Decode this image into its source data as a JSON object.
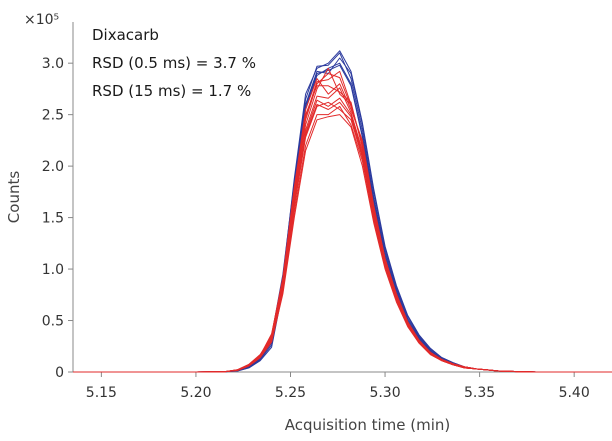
{
  "chart_data": {
    "type": "line",
    "xlabel": "Acquisition time (min)",
    "ylabel": "Counts",
    "y_multiplier_label": "×10⁵",
    "xlim": [
      5.135,
      5.42
    ],
    "ylim": [
      0,
      3.4
    ],
    "x_ticks": [
      5.15,
      5.2,
      5.25,
      5.3,
      5.35,
      5.4
    ],
    "x_tick_labels": [
      "5.15",
      "5.20",
      "5.25",
      "5.30",
      "5.35",
      "5.40"
    ],
    "y_ticks": [
      0,
      0.5,
      1.0,
      1.5,
      2.0,
      2.5,
      3.0
    ],
    "y_tick_labels": [
      "0",
      "0.5",
      "1.0",
      "1.5",
      "2.0",
      "2.5",
      "3.0"
    ],
    "grid": false,
    "legend": "none",
    "annotation": {
      "compound": "Dixacarb",
      "rsd_fast": "RSD (0.5 ms) = 3.7 %",
      "rsd_slow": "RSD (15 ms) = 1.7 %"
    },
    "x": [
      5.135,
      5.2,
      5.215,
      5.222,
      5.228,
      5.234,
      5.24,
      5.246,
      5.252,
      5.258,
      5.264,
      5.27,
      5.276,
      5.282,
      5.288,
      5.294,
      5.3,
      5.306,
      5.312,
      5.318,
      5.324,
      5.33,
      5.336,
      5.342,
      5.348,
      5.354,
      5.36,
      5.37,
      5.38,
      5.42
    ],
    "series": [
      {
        "color": "#2b3a9e",
        "values": [
          0,
          0,
          0.003,
          0.015,
          0.05,
          0.14,
          0.35,
          0.95,
          1.85,
          2.65,
          2.97,
          2.98,
          3.1,
          2.85,
          2.35,
          1.7,
          1.17,
          0.8,
          0.52,
          0.34,
          0.21,
          0.13,
          0.08,
          0.05,
          0.03,
          0.02,
          0.01,
          0.004,
          0,
          0
        ]
      },
      {
        "color": "#2b3a9e",
        "values": [
          0,
          0,
          0.002,
          0.012,
          0.045,
          0.12,
          0.3,
          0.88,
          1.8,
          2.6,
          2.92,
          2.9,
          3.05,
          2.9,
          2.4,
          1.75,
          1.2,
          0.82,
          0.54,
          0.35,
          0.22,
          0.14,
          0.09,
          0.05,
          0.03,
          0.02,
          0.01,
          0.004,
          0,
          0
        ]
      },
      {
        "color": "#2b3a9e",
        "values": [
          0,
          0,
          0.002,
          0.01,
          0.04,
          0.11,
          0.24,
          0.8,
          1.72,
          2.55,
          2.88,
          2.95,
          3.0,
          2.8,
          2.3,
          1.68,
          1.14,
          0.78,
          0.5,
          0.33,
          0.2,
          0.13,
          0.08,
          0.05,
          0.03,
          0.02,
          0.01,
          0.004,
          0,
          0
        ]
      },
      {
        "color": "#2b3a9e",
        "values": [
          0,
          0,
          0.003,
          0.014,
          0.05,
          0.13,
          0.28,
          0.92,
          1.88,
          2.7,
          2.95,
          3.0,
          3.12,
          2.92,
          2.42,
          1.78,
          1.22,
          0.84,
          0.55,
          0.36,
          0.23,
          0.14,
          0.09,
          0.05,
          0.03,
          0.02,
          0.01,
          0.004,
          0,
          0
        ]
      },
      {
        "color": "#2b3a9e",
        "values": [
          0,
          0,
          0.002,
          0.011,
          0.042,
          0.12,
          0.26,
          0.85,
          1.78,
          2.58,
          2.9,
          2.93,
          2.98,
          2.78,
          2.28,
          1.65,
          1.12,
          0.77,
          0.5,
          0.32,
          0.2,
          0.12,
          0.08,
          0.05,
          0.03,
          0.02,
          0.01,
          0.004,
          0,
          0
        ]
      },
      {
        "color": "#e22a2a",
        "values": [
          0,
          0,
          0.003,
          0.02,
          0.07,
          0.16,
          0.37,
          0.9,
          1.7,
          2.4,
          2.75,
          2.95,
          2.7,
          2.6,
          2.2,
          1.6,
          1.1,
          0.75,
          0.48,
          0.3,
          0.19,
          0.12,
          0.08,
          0.05,
          0.03,
          0.02,
          0.01,
          0.004,
          0,
          0
        ]
      },
      {
        "color": "#e22a2a",
        "values": [
          0,
          0,
          0.002,
          0.018,
          0.065,
          0.15,
          0.32,
          0.82,
          1.62,
          2.3,
          2.6,
          2.55,
          2.62,
          2.48,
          2.1,
          1.52,
          1.05,
          0.72,
          0.46,
          0.29,
          0.18,
          0.11,
          0.07,
          0.04,
          0.03,
          0.02,
          0.01,
          0.004,
          0,
          0
        ]
      },
      {
        "color": "#e22a2a",
        "values": [
          0,
          0,
          0.003,
          0.022,
          0.075,
          0.17,
          0.34,
          0.86,
          1.78,
          2.55,
          2.85,
          2.7,
          2.8,
          2.55,
          2.25,
          1.62,
          1.1,
          0.76,
          0.49,
          0.31,
          0.19,
          0.12,
          0.08,
          0.05,
          0.03,
          0.02,
          0.01,
          0.004,
          0,
          0
        ]
      },
      {
        "color": "#e22a2a",
        "values": [
          0,
          0,
          0.002,
          0.016,
          0.06,
          0.14,
          0.3,
          0.78,
          1.55,
          2.2,
          2.5,
          2.5,
          2.58,
          2.4,
          2.05,
          1.48,
          1.02,
          0.7,
          0.45,
          0.28,
          0.17,
          0.11,
          0.07,
          0.04,
          0.03,
          0.02,
          0.01,
          0.004,
          0,
          0
        ]
      },
      {
        "color": "#e22a2a",
        "values": [
          0,
          0,
          0.003,
          0.02,
          0.07,
          0.16,
          0.36,
          0.92,
          1.8,
          2.5,
          2.78,
          2.78,
          2.72,
          2.62,
          2.18,
          1.58,
          1.08,
          0.74,
          0.48,
          0.3,
          0.19,
          0.12,
          0.08,
          0.05,
          0.03,
          0.02,
          0.01,
          0.004,
          0,
          0
        ]
      },
      {
        "color": "#e22a2a",
        "values": [
          0,
          0,
          0.002,
          0.017,
          0.062,
          0.145,
          0.31,
          0.8,
          1.6,
          2.28,
          2.58,
          2.62,
          2.55,
          2.45,
          2.08,
          1.5,
          1.04,
          0.71,
          0.46,
          0.29,
          0.18,
          0.11,
          0.07,
          0.04,
          0.03,
          0.02,
          0.01,
          0.004,
          0,
          0
        ]
      },
      {
        "color": "#e22a2a",
        "values": [
          0,
          0,
          0.003,
          0.021,
          0.072,
          0.165,
          0.35,
          0.88,
          1.74,
          2.45,
          2.8,
          2.9,
          2.86,
          2.58,
          2.22,
          1.6,
          1.1,
          0.75,
          0.48,
          0.3,
          0.19,
          0.12,
          0.08,
          0.05,
          0.03,
          0.02,
          0.01,
          0.004,
          0,
          0
        ]
      },
      {
        "color": "#e22a2a",
        "values": [
          0,
          0,
          0.002,
          0.015,
          0.058,
          0.14,
          0.29,
          0.76,
          1.5,
          2.15,
          2.45,
          2.48,
          2.5,
          2.38,
          2.0,
          1.45,
          1.0,
          0.68,
          0.44,
          0.28,
          0.17,
          0.11,
          0.07,
          0.04,
          0.03,
          0.02,
          0.01,
          0.004,
          0,
          0
        ]
      },
      {
        "color": "#e22a2a",
        "values": [
          0,
          0,
          0.003,
          0.019,
          0.068,
          0.155,
          0.33,
          0.84,
          1.66,
          2.35,
          2.68,
          2.66,
          2.76,
          2.52,
          2.15,
          1.55,
          1.06,
          0.73,
          0.47,
          0.3,
          0.18,
          0.12,
          0.08,
          0.05,
          0.03,
          0.02,
          0.01,
          0.004,
          0,
          0
        ]
      },
      {
        "color": "#e22a2a",
        "values": [
          0,
          0,
          0.002,
          0.018,
          0.066,
          0.15,
          0.33,
          0.83,
          1.64,
          2.32,
          2.64,
          2.58,
          2.66,
          2.5,
          2.12,
          1.54,
          1.06,
          0.72,
          0.46,
          0.29,
          0.18,
          0.11,
          0.07,
          0.04,
          0.03,
          0.02,
          0.01,
          0.004,
          0,
          0
        ]
      },
      {
        "color": "#e22a2a",
        "values": [
          0,
          0,
          0.003,
          0.02,
          0.07,
          0.16,
          0.35,
          0.89,
          1.76,
          2.48,
          2.82,
          2.84,
          2.92,
          2.6,
          2.2,
          1.59,
          1.09,
          0.75,
          0.48,
          0.3,
          0.19,
          0.12,
          0.08,
          0.05,
          0.03,
          0.02,
          0.01,
          0.004,
          0,
          0
        ]
      }
    ]
  }
}
